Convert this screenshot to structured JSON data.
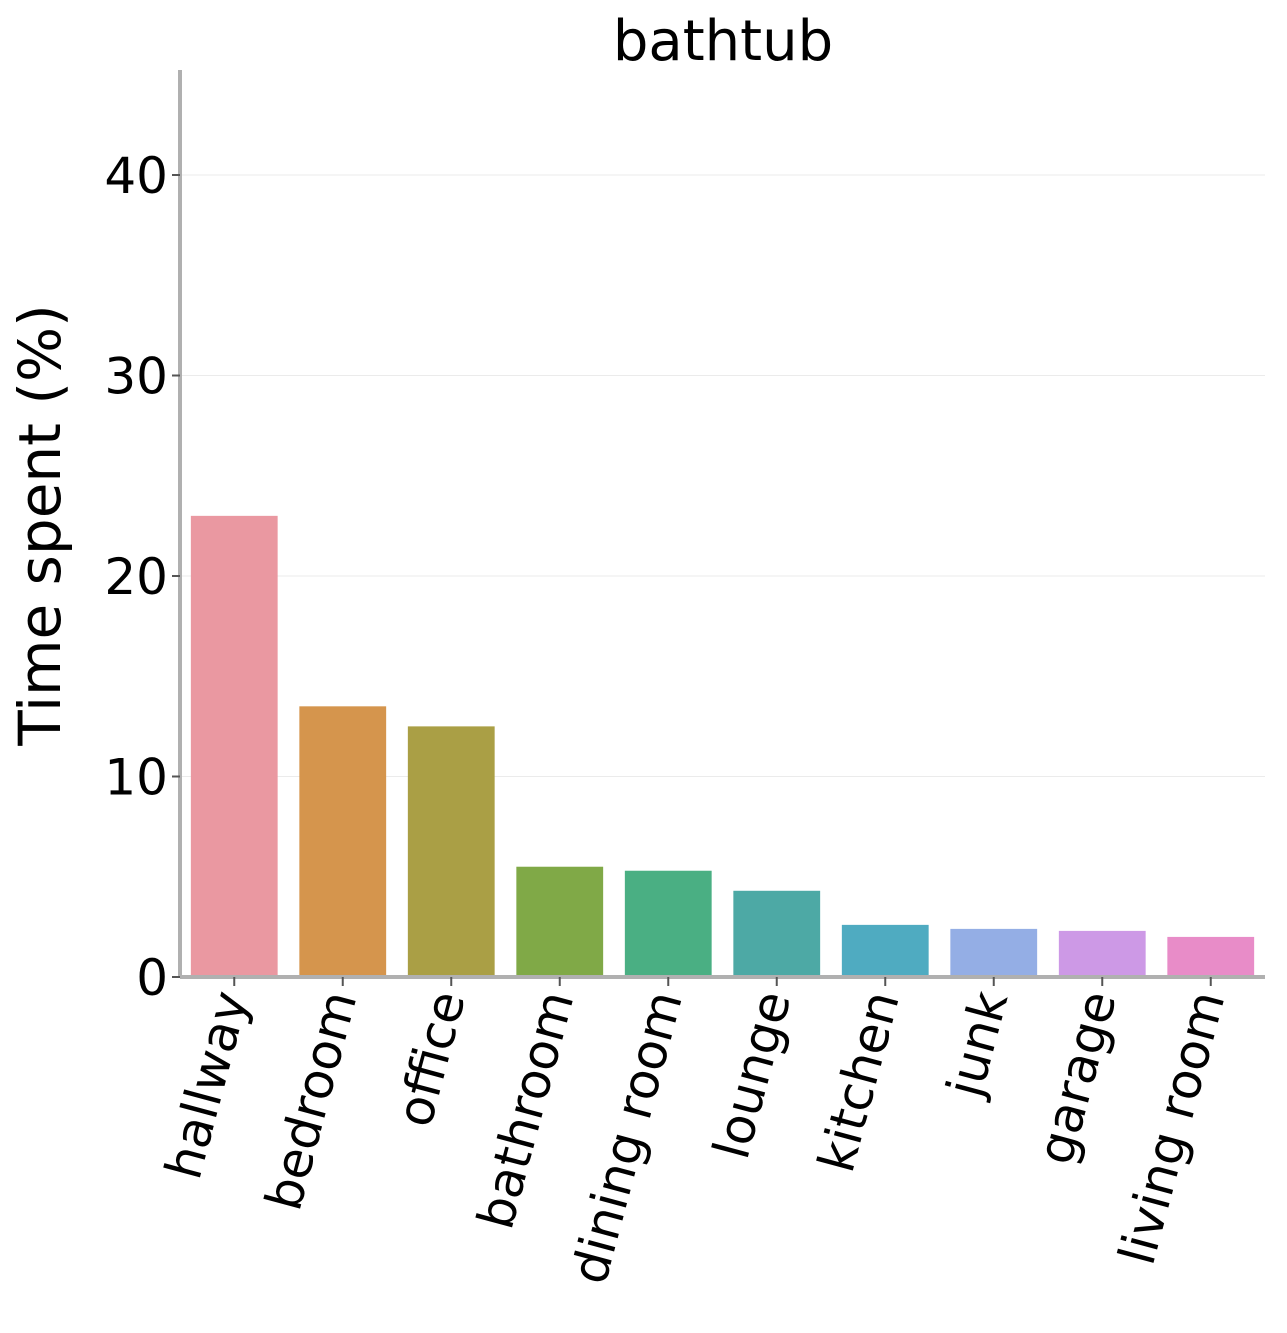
{
  "chart_data": {
    "type": "bar",
    "title": "bathtub",
    "xlabel": "",
    "ylabel": "Time spent (%)",
    "ylim": [
      0,
      45
    ],
    "yticks": [
      0,
      10,
      20,
      30,
      40
    ],
    "grid": true,
    "legend": "none",
    "categories": [
      "hallway",
      "bedroom",
      "office",
      "bathroom",
      "dining room",
      "lounge",
      "kitchen",
      "junk",
      "garage",
      "living room"
    ],
    "values": [
      23.0,
      13.5,
      12.5,
      5.5,
      5.3,
      4.3,
      2.6,
      2.4,
      2.3,
      2.0
    ],
    "colors": [
      "#ea98a1",
      "#d5954d",
      "#aa9f45",
      "#80a947",
      "#4aaf83",
      "#4da9a5",
      "#4fabc1",
      "#94aee5",
      "#cd99e6",
      "#e88cc8"
    ]
  }
}
